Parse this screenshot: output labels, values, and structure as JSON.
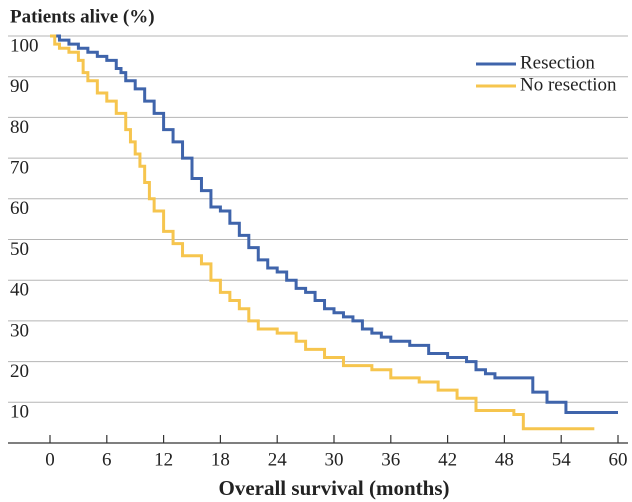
{
  "chart_data": {
    "type": "line",
    "step": true,
    "title": "Patients alive (%)",
    "x_label": "Overall survival (months)",
    "xlim": [
      0,
      60
    ],
    "xticks": [
      0,
      6,
      12,
      18,
      24,
      30,
      36,
      42,
      48,
      54,
      60
    ],
    "ylim": [
      0,
      100
    ],
    "yticks": [
      10,
      20,
      30,
      40,
      50,
      60,
      70,
      80,
      90,
      100
    ],
    "grid": true,
    "legend": "top-right",
    "series": [
      {
        "name": "Resection",
        "color": "#3f64ab",
        "x": [
          0,
          1,
          2,
          3,
          4,
          5,
          6,
          7,
          7.5,
          8,
          9,
          10,
          11,
          12,
          13,
          14,
          15,
          16,
          17,
          18,
          19,
          20,
          21,
          22,
          23,
          24,
          25,
          26,
          27,
          28,
          29,
          30,
          31,
          32,
          33,
          34,
          35,
          36,
          38,
          40,
          42,
          44,
          45,
          46,
          47,
          51,
          52.5,
          54.5,
          60
        ],
        "values": [
          100,
          99,
          98,
          97,
          96,
          95,
          94,
          92,
          91,
          89,
          87,
          84,
          81,
          77,
          74,
          70,
          65,
          62,
          58,
          57,
          54,
          51,
          48,
          45,
          43,
          42,
          40,
          38,
          37,
          35,
          33,
          32,
          31,
          30,
          28,
          27,
          26,
          25,
          24,
          22,
          21,
          20,
          18,
          17,
          16,
          12.5,
          10,
          7.5,
          7.5
        ]
      },
      {
        "name": "No resection",
        "color": "#f6c54e",
        "x": [
          0,
          0.5,
          1,
          2,
          3,
          3.5,
          4,
          5,
          6,
          7,
          8,
          8.5,
          9,
          9.5,
          10,
          10.5,
          11,
          12,
          13,
          14,
          16,
          17,
          18,
          19,
          20,
          21,
          22,
          24,
          26,
          27,
          29,
          31,
          34,
          36,
          39,
          41,
          43,
          45,
          49,
          50,
          57.5
        ],
        "values": [
          100,
          98,
          97,
          96,
          94,
          91,
          89,
          86,
          84,
          81,
          77,
          74,
          71,
          68,
          64,
          60,
          57,
          52,
          49,
          46,
          44,
          40,
          37,
          35,
          33,
          30,
          28,
          27,
          25,
          23,
          21,
          19,
          18,
          16,
          15,
          13,
          11,
          8,
          7,
          3.5,
          3.5
        ]
      }
    ]
  }
}
